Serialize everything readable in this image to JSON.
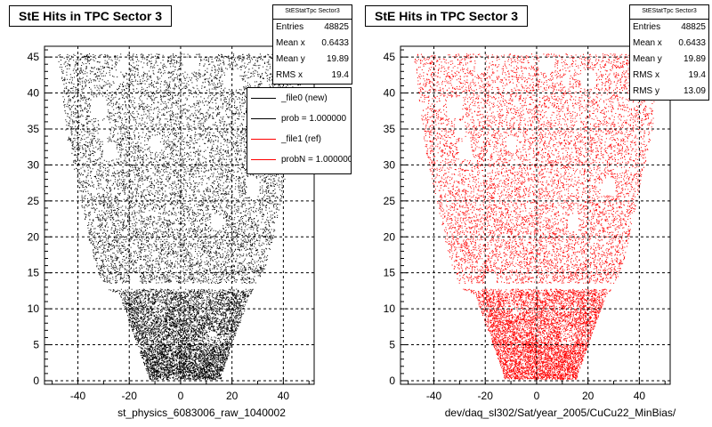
{
  "chart_data": [
    {
      "type": "scatter",
      "title": "StE Hits in TPC Sector 3",
      "xlabel": "st_physics_6083006_raw_1040002",
      "ylabel": "",
      "xlim": [
        -53,
        52
      ],
      "ylim": [
        -0.5,
        46.5
      ],
      "xticks": [
        "-40",
        "-20",
        "0",
        "20",
        "40"
      ],
      "yticks": [
        "0",
        "5",
        "10",
        "15",
        "20",
        "25",
        "30",
        "35",
        "40",
        "45"
      ],
      "grid": true,
      "marker_color": "#000000",
      "stats": {
        "header": "StEStatTpc Sector3",
        "rows": [
          {
            "label": "Entries",
            "value": "48825"
          },
          {
            "label": "Mean x",
            "value": "0.6433"
          },
          {
            "label": "Mean y",
            "value": "19.89"
          },
          {
            "label": "RMS x",
            "value": "19.4"
          }
        ]
      },
      "legend": {
        "placement": "top-right",
        "entries": [
          {
            "label": "_file0 (new)",
            "color": "#000000"
          },
          {
            "label": "prob = 1.000000",
            "color": "#000000"
          },
          {
            "label": "_file1 (ref)",
            "color": "#ff0000"
          },
          {
            "label": "probN = 1.000000",
            "color": "#ff0000"
          }
        ]
      },
      "envelope": [
        [
          0,
          -12.5,
          15.5
        ],
        [
          1,
          -13,
          16
        ],
        [
          2,
          -14,
          17
        ],
        [
          3,
          -15,
          18
        ],
        [
          4,
          -16,
          19
        ],
        [
          5,
          -17,
          20
        ],
        [
          6,
          -18,
          21
        ],
        [
          7,
          -19,
          22
        ],
        [
          8,
          -20,
          23
        ],
        [
          9,
          -21,
          24
        ],
        [
          10,
          -22,
          25
        ],
        [
          11,
          -23,
          26
        ],
        [
          12,
          -24,
          27
        ],
        [
          13,
          -30,
          30
        ],
        [
          14,
          -31,
          31
        ],
        [
          15,
          -32,
          32
        ],
        [
          17,
          -34,
          34
        ],
        [
          20,
          -36,
          36
        ],
        [
          25,
          -39,
          39
        ],
        [
          30,
          -42,
          42
        ],
        [
          35,
          -45,
          45
        ],
        [
          40,
          -46,
          46
        ],
        [
          45.5,
          -48,
          48
        ]
      ]
    },
    {
      "type": "scatter",
      "title": "StE Hits in TPC Sector 3",
      "xlabel": "dev/daq_sl302/Sat/year_2005/CuCu22_MinBias/",
      "ylabel": "",
      "xlim": [
        -53,
        52
      ],
      "ylim": [
        -0.5,
        46.5
      ],
      "xticks": [
        "-40",
        "-20",
        "0",
        "20",
        "40"
      ],
      "yticks": [
        "0",
        "5",
        "10",
        "15",
        "20",
        "25",
        "30",
        "35",
        "40",
        "45"
      ],
      "grid": true,
      "marker_color": "#ff0000",
      "stats": {
        "header": "StEStatTpc Sector3",
        "rows": [
          {
            "label": "Entries",
            "value": "48825"
          },
          {
            "label": "Mean x",
            "value": "0.6433"
          },
          {
            "label": "Mean y",
            "value": "19.89"
          },
          {
            "label": "RMS x",
            "value": "19.4"
          },
          {
            "label": "RMS y",
            "value": "13.09"
          }
        ]
      },
      "envelope": [
        [
          0,
          -12.5,
          15.5
        ],
        [
          1,
          -13,
          16
        ],
        [
          2,
          -14,
          17
        ],
        [
          3,
          -15,
          18
        ],
        [
          4,
          -16,
          19
        ],
        [
          5,
          -17,
          20
        ],
        [
          6,
          -18,
          21
        ],
        [
          7,
          -19,
          22
        ],
        [
          8,
          -20,
          23
        ],
        [
          9,
          -21,
          24
        ],
        [
          10,
          -22,
          25
        ],
        [
          11,
          -23,
          26
        ],
        [
          12,
          -24,
          27
        ],
        [
          13,
          -30,
          30
        ],
        [
          14,
          -31,
          31
        ],
        [
          15,
          -32,
          32
        ],
        [
          17,
          -34,
          34
        ],
        [
          20,
          -36,
          36
        ],
        [
          25,
          -39,
          39
        ],
        [
          30,
          -42,
          42
        ],
        [
          35,
          -45,
          45
        ],
        [
          40,
          -46,
          46
        ],
        [
          45.5,
          -48,
          48
        ]
      ]
    }
  ]
}
